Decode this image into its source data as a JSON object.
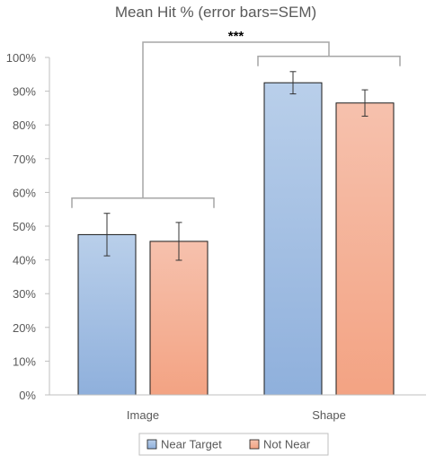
{
  "chart_data": {
    "type": "bar",
    "title": "Mean Hit % (error bars=SEM)",
    "categories": [
      "Image",
      "Shape"
    ],
    "ylim": [
      0,
      100
    ],
    "yticks": [
      0,
      10,
      20,
      30,
      40,
      50,
      60,
      70,
      80,
      90,
      100
    ],
    "ytick_labels": [
      "0%",
      "10%",
      "20%",
      "30%",
      "40%",
      "50%",
      "60%",
      "70%",
      "80%",
      "90%",
      "100%"
    ],
    "value_unit": "percent",
    "grid": false,
    "legend_position": "bottom",
    "series": [
      {
        "name": "Near Target",
        "values": [
          47.5,
          92.5
        ],
        "errors": [
          6.3,
          3.3
        ],
        "color_top": "#b9cfea",
        "color_bottom": "#8fb0dc"
      },
      {
        "name": "Not Near",
        "values": [
          45.5,
          86.5
        ],
        "errors": [
          5.6,
          3.9
        ],
        "color_top": "#f6c1ad",
        "color_bottom": "#f3a383"
      }
    ],
    "annotation": {
      "text": "***",
      "compares": [
        "Image",
        "Shape"
      ]
    }
  }
}
